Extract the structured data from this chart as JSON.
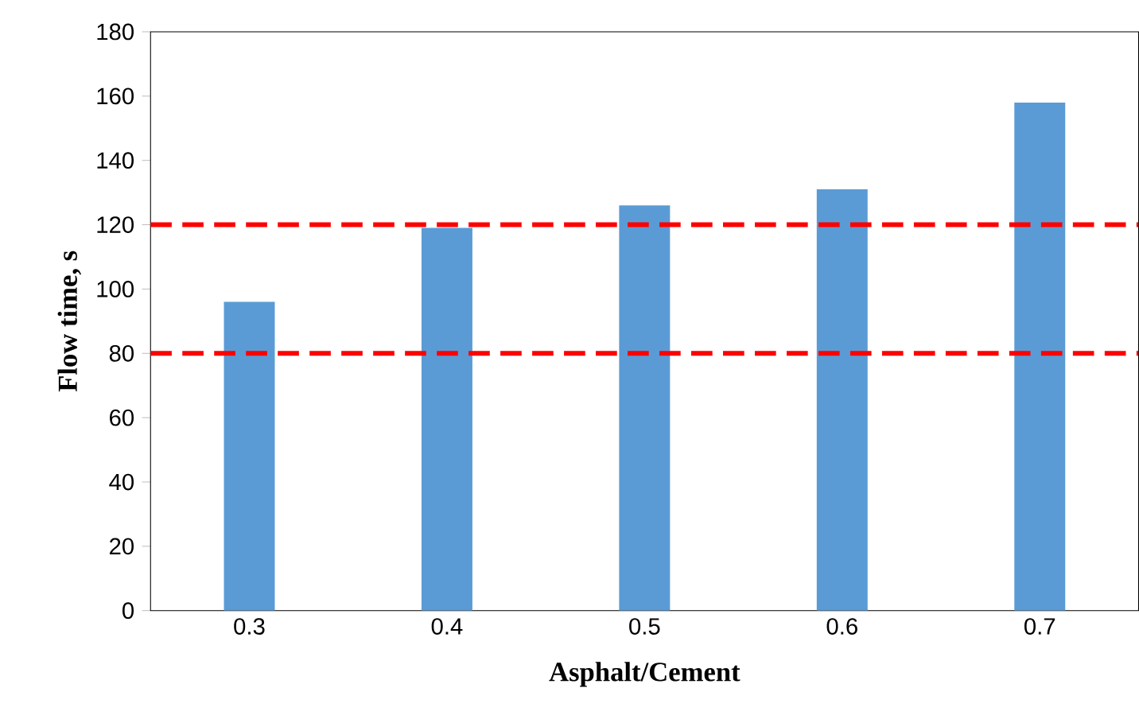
{
  "chart_data": {
    "type": "bar",
    "xlabel": "Asphalt/Cement",
    "ylabel": "Flow time, s",
    "categories": [
      "0.3",
      "0.4",
      "0.5",
      "0.6",
      "0.7"
    ],
    "values": [
      96,
      119,
      126,
      131,
      158
    ],
    "color": "#5b9bd5",
    "ylim": [
      0,
      180
    ],
    "yticks": [
      0,
      20,
      40,
      60,
      80,
      100,
      120,
      140,
      160,
      180
    ],
    "grid": false,
    "ref_lines": [
      {
        "axis": "y",
        "value": 120,
        "color": "#ff0000",
        "line_style": "dashed"
      },
      {
        "axis": "y",
        "value": 80,
        "color": "#ff0000",
        "line_style": "dashed"
      }
    ]
  }
}
